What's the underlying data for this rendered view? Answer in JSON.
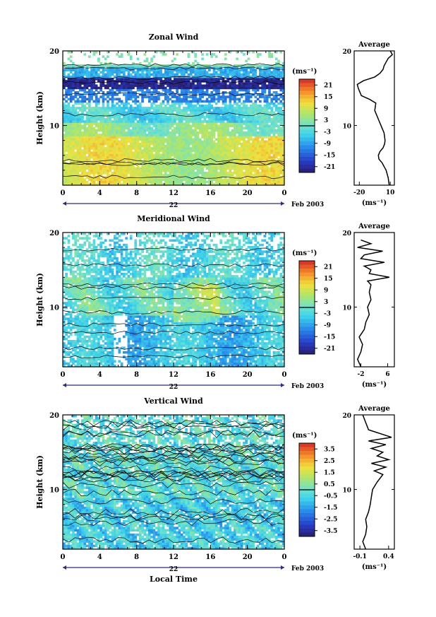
{
  "figure": {
    "date_label": "Feb 2003",
    "day_label": "22",
    "xlabel": "Local Time",
    "units": "(ms⁻¹)",
    "avg_title": "Average"
  },
  "chart_data": [
    {
      "type": "heatmap",
      "title": "Zonal Wind",
      "xlabel": "",
      "ylabel": "Height (km)",
      "xlim": [
        0,
        24
      ],
      "ylim": [
        2,
        20
      ],
      "x_ticks": [
        "0",
        "4",
        "8",
        "12",
        "16",
        "20",
        "0"
      ],
      "y_ticks": [
        "10",
        "20"
      ],
      "colorbar": {
        "label": "(ms⁻¹)",
        "min": -24,
        "max": 24,
        "ticks": [
          "21",
          "15",
          "9",
          "3",
          "-3",
          "-9",
          "-15",
          "-21"
        ]
      },
      "profile": {
        "title": "Average",
        "xlabel": "(ms⁻¹)",
        "x_ticks": [
          "-20",
          "10"
        ],
        "xlim": [
          -25,
          14
        ],
        "height": [
          2.0,
          3.0,
          4.0,
          5.0,
          5.5,
          6.0,
          6.5,
          7.0,
          7.5,
          8.0,
          9.0,
          10.0,
          11.0,
          12.0,
          13.0,
          13.5,
          14.0,
          15.0,
          15.5,
          16.0,
          16.5,
          17.0,
          17.5,
          18.0,
          18.5,
          19.0,
          19.5,
          20.0
        ],
        "value": [
          9.0,
          8.0,
          6.0,
          2.0,
          -1.0,
          -1.5,
          0.0,
          3.0,
          4.5,
          5.0,
          4.0,
          1.0,
          -2.0,
          -5.0,
          -4.0,
          -10.0,
          -18.0,
          -21.0,
          -22.0,
          -16.0,
          -5.0,
          0.0,
          3.0,
          4.0,
          6.0,
          8.0,
          12.0,
          10.0
        ]
      }
    },
    {
      "type": "heatmap",
      "title": "Meridional Wind",
      "xlabel": "",
      "ylabel": "Height (km)",
      "xlim": [
        0,
        24
      ],
      "ylim": [
        2,
        20
      ],
      "x_ticks": [
        "0",
        "4",
        "8",
        "12",
        "16",
        "20",
        "0"
      ],
      "y_ticks": [
        "10",
        "20"
      ],
      "colorbar": {
        "label": "(ms⁻¹)",
        "min": -24,
        "max": 24,
        "ticks": [
          "21",
          "15",
          "9",
          "3",
          "-3",
          "-9",
          "-15",
          "-21"
        ]
      },
      "profile": {
        "title": "Average",
        "xlabel": "(ms⁻¹)",
        "x_ticks": [
          "-2",
          "6"
        ],
        "xlim": [
          -4,
          8
        ],
        "height": [
          2.0,
          3.0,
          4.0,
          5.0,
          6.0,
          7.0,
          8.0,
          9.0,
          10.0,
          11.0,
          12.0,
          13.0,
          13.5,
          14.0,
          14.5,
          15.0,
          15.5,
          16.0,
          16.5,
          17.0,
          17.5,
          18.0,
          18.5,
          19.0
        ],
        "value": [
          -2.0,
          -3.0,
          -2.0,
          -1.5,
          -2.5,
          -1.0,
          -0.5,
          0.5,
          0.0,
          1.0,
          0.5,
          1.0,
          0.0,
          6.5,
          0.5,
          1.0,
          -1.0,
          5.0,
          -2.0,
          -1.0,
          4.5,
          -3.0,
          1.0,
          -2.0
        ]
      }
    },
    {
      "type": "heatmap",
      "title": "Vertical Wind",
      "xlabel": "Local Time",
      "ylabel": "Height (km)",
      "xlim": [
        0,
        24
      ],
      "ylim": [
        2,
        20
      ],
      "x_ticks": [
        "0",
        "4",
        "8",
        "12",
        "16",
        "20",
        "0"
      ],
      "y_ticks": [
        "10",
        "20"
      ],
      "colorbar": {
        "label": "(ms⁻¹)",
        "min": -4,
        "max": 4,
        "ticks": [
          "3.5",
          "2.5",
          "1.5",
          "0.5",
          "-0.5",
          "-1.5",
          "-2.5",
          "-3.5"
        ]
      },
      "profile": {
        "title": "Average",
        "xlabel": "(ms⁻¹)",
        "x_ticks": [
          "-0.1",
          "0.4"
        ],
        "xlim": [
          -0.2,
          0.5
        ],
        "height": [
          2.0,
          3.0,
          4.0,
          5.0,
          6.0,
          7.0,
          8.0,
          9.0,
          10.0,
          11.0,
          12.0,
          12.5,
          13.0,
          13.5,
          14.0,
          14.5,
          15.0,
          15.5,
          16.0,
          16.5,
          17.0,
          18.0,
          19.0,
          20.0
        ],
        "value": [
          0.0,
          -0.05,
          0.0,
          0.02,
          0.0,
          0.05,
          0.08,
          0.1,
          0.12,
          0.2,
          0.3,
          0.15,
          0.35,
          0.1,
          0.4,
          0.2,
          0.3,
          0.1,
          0.35,
          0.05,
          0.45,
          0.05,
          0.0,
          -0.05
        ]
      }
    }
  ]
}
